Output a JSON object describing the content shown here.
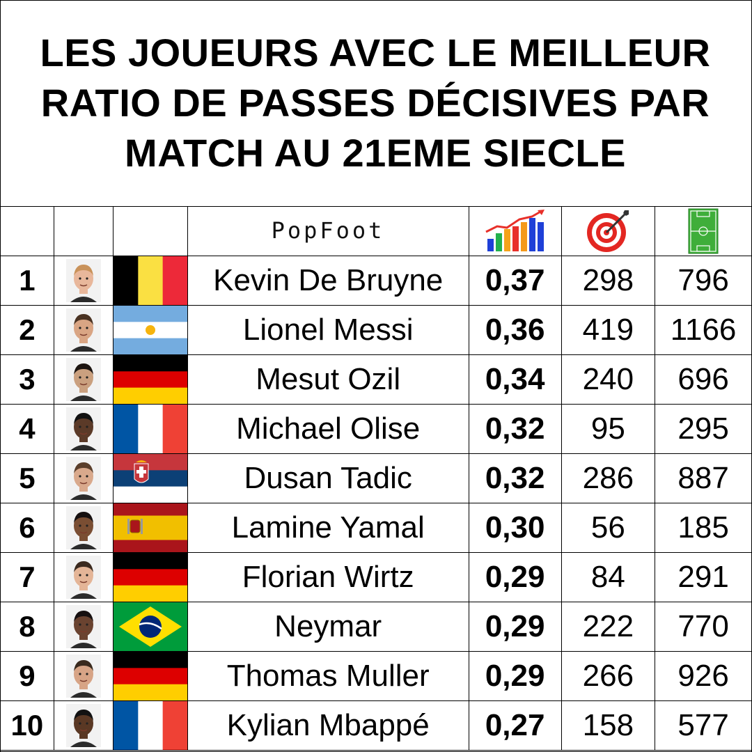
{
  "title": "LES JOUEURS AVEC LE MEILLEUR RATIO DE PASSES DÉCISIVES PAR MATCH AU 21EME SIECLE",
  "header": {
    "brand": "PopFoot",
    "ratio_icon": "growth-chart-icon",
    "assists_icon": "target-icon",
    "matches_icon": "football-pitch-icon"
  },
  "players": [
    {
      "rank": "1",
      "name": "Kevin De Bruyne",
      "flag": "belgium",
      "ratio": "0,37",
      "assists": "298",
      "matches": "796"
    },
    {
      "rank": "2",
      "name": "Lionel Messi",
      "flag": "argentina",
      "ratio": "0,36",
      "assists": "419",
      "matches": "1166"
    },
    {
      "rank": "3",
      "name": "Mesut Ozil",
      "flag": "germany",
      "ratio": "0,34",
      "assists": "240",
      "matches": "696"
    },
    {
      "rank": "4",
      "name": "Michael Olise",
      "flag": "france",
      "ratio": "0,32",
      "assists": "95",
      "matches": "295"
    },
    {
      "rank": "5",
      "name": "Dusan Tadic",
      "flag": "serbia",
      "ratio": "0,32",
      "assists": "286",
      "matches": "887"
    },
    {
      "rank": "6",
      "name": "Lamine Yamal",
      "flag": "spain",
      "ratio": "0,30",
      "assists": "56",
      "matches": "185"
    },
    {
      "rank": "7",
      "name": "Florian Wirtz",
      "flag": "germany",
      "ratio": "0,29",
      "assists": "84",
      "matches": "291"
    },
    {
      "rank": "8",
      "name": "Neymar",
      "flag": "brazil",
      "ratio": "0,29",
      "assists": "222",
      "matches": "770"
    },
    {
      "rank": "9",
      "name": "Thomas Muller",
      "flag": "germany",
      "ratio": "0,29",
      "assists": "266",
      "matches": "926"
    },
    {
      "rank": "10",
      "name": "Kylian Mbappé",
      "flag": "france",
      "ratio": "0,27",
      "assists": "158",
      "matches": "577"
    }
  ],
  "colors": {
    "belgium": [
      "#000000",
      "#FAE042",
      "#ED2939"
    ],
    "argentina": [
      "#74ACDF",
      "#FFFFFF",
      "#F6B40E"
    ],
    "germany": [
      "#000000",
      "#DD0000",
      "#FFCE00"
    ],
    "france": [
      "#0055A4",
      "#FFFFFF",
      "#EF4135"
    ],
    "serbia": [
      "#C6363C",
      "#0C4076",
      "#FFFFFF"
    ],
    "spain": [
      "#AA151B",
      "#F1BF00"
    ],
    "brazil": [
      "#009C3B",
      "#FFDF00",
      "#002776"
    ]
  }
}
